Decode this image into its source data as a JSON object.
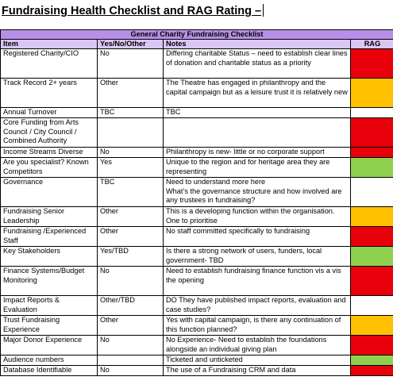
{
  "document": {
    "title": "Fundraising Health Checklist and RAG Rating –"
  },
  "colors": {
    "red": "#e8000b",
    "amber": "#ffc000",
    "green": "#8fd14f",
    "white": "#ffffff",
    "banner": "#b78fe8",
    "header": "#d9c6f2"
  },
  "table": {
    "banner": "General Charity Fundraising Checklist",
    "headers": {
      "item": "Item",
      "yes_no": "Yes/No/Other",
      "notes": "Notes",
      "rag": "RAG"
    },
    "rows": [
      {
        "item": "Registered Charity/CIO",
        "yes_no": "No",
        "notes": "Differing charitable Status – need to establish clear lines of donation and charitable status as a priority",
        "rag": "red"
      },
      {
        "item": "Track Record 2+ years",
        "yes_no": "Other",
        "notes": "The Theatre has engaged in philanthropy and the capital campaign but as a leisure trust it is relatively new",
        "rag": "amber"
      },
      {
        "item": "Annual Turnover",
        "yes_no": "TBC",
        "notes": "TBC",
        "rag": "white"
      },
      {
        "item": "Core Funding from Arts Council / City Council / Combined Authority",
        "yes_no": "",
        "notes": "",
        "rag": "red"
      },
      {
        "item": "Income Streams Diverse",
        "yes_no": "No",
        "notes": "Philanthropy is new- little or no corporate support",
        "rag": "red"
      },
      {
        "item": "Are you specialist? Known Competitors",
        "yes_no": "Yes",
        "notes": "Unique to the region and for heritage area they are representing",
        "rag": "green"
      },
      {
        "item": "Governance",
        "yes_no": "TBC",
        "notes": "Need to understand more here\nWhat’s the governance structure and how involved are any trustees in fundraising?",
        "rag": "white"
      },
      {
        "item": "Fundraising Senior Leadership",
        "yes_no": "Other",
        "notes": "This is a developing function within the organisation. One to prioritise",
        "rag": "amber"
      },
      {
        "item": "Fundraising /Experienced Staff",
        "yes_no": "Other",
        "notes": "No staff committed specifically to fundraising",
        "rag": "red"
      },
      {
        "item": "Key Stakeholders",
        "yes_no": "Yes/TBD",
        "notes": "Is there a strong network of users, funders, local government- TBD",
        "rag": "green"
      },
      {
        "item": "Finance Systems/Budget Monitoring",
        "yes_no": "No",
        "notes": "Need to establish fundraising finance function vis a vis the opening",
        "rag": "red"
      },
      {
        "item": "Impact Reports & Evaluation",
        "yes_no": "Other/TBD",
        "notes": "DO They have published impact reports, evaluation and case studies?",
        "rag": "white"
      },
      {
        "item": "Trust Fundraising Experience",
        "yes_no": "Other",
        "notes": "Yes with capital campaign, is there any continuation of this function planned?",
        "rag": "amber"
      },
      {
        "item": "Major Donor Experience",
        "yes_no": "No",
        "notes": "No Experience- Need to establish the foundations alongside an individual giving plan",
        "rag": "red"
      },
      {
        "item": "Audience numbers",
        "yes_no": "",
        "notes": "Ticketed and unticketed",
        "rag": "green"
      },
      {
        "item": "Database Identifiable",
        "yes_no": "No",
        "notes": "The use of a Fundraising CRM and data",
        "rag": "red"
      }
    ]
  }
}
